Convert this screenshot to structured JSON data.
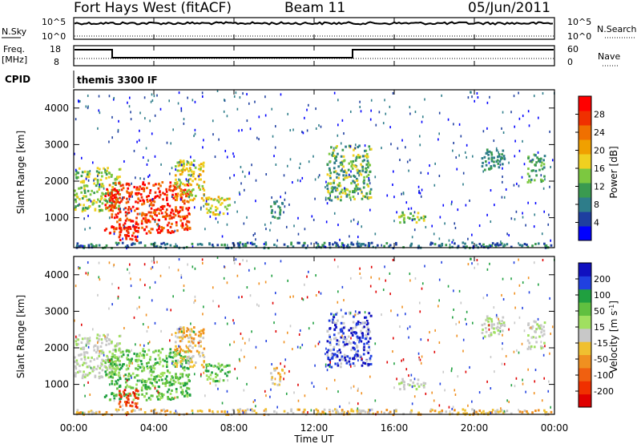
{
  "header": {
    "radar": "Fort Hays West (fitACF)",
    "beam": "Beam 11",
    "date": "05/Jun/2011"
  },
  "summary": {
    "left_top_label": "N.Sky",
    "right_top_label": "N.Search",
    "left_mid_label_1": "Freq.",
    "left_mid_label_2": "[MHz]",
    "right_mid_label": "Nave",
    "cpid_label": "CPID",
    "cpid_text": "themis 3300 IF",
    "nsky_ticks": [
      "10^5",
      "10^0"
    ],
    "freq_ticks": [
      "18",
      "8"
    ],
    "nave_ticks": [
      "60",
      "0"
    ]
  },
  "chart_data": [
    {
      "type": "heatmap",
      "title": "",
      "xlabel": "Time UT",
      "ylabel": "Slant Range [km]",
      "x_tick_labels": [
        "00:00",
        "04:00",
        "08:00",
        "12:00",
        "16:00",
        "20:00",
        "00:00"
      ],
      "y_tick_labels": [
        "1000",
        "2000",
        "3000",
        "4000"
      ],
      "ylim": [
        180,
        4500
      ],
      "colorbar": {
        "label": "Power [dB]",
        "ticks": [
          "4",
          "8",
          "12",
          "16",
          "20",
          "24",
          "28"
        ],
        "colors": [
          "#0000ff",
          "#1e3fa0",
          "#2e7d8a",
          "#3a9a50",
          "#7cc840",
          "#f0d020",
          "#f0a000",
          "#f07000",
          "#f03000",
          "#ff0000"
        ]
      }
    },
    {
      "type": "heatmap",
      "title": "",
      "xlabel": "Time UT",
      "ylabel": "Slant Range [km]",
      "x_tick_labels": [
        "00:00",
        "04:00",
        "08:00",
        "12:00",
        "16:00",
        "20:00",
        "00:00"
      ],
      "y_tick_labels": [
        "1000",
        "2000",
        "3000",
        "4000"
      ],
      "ylim": [
        180,
        4500
      ],
      "colorbar": {
        "label": "Velocity [m s^-1]",
        "ticks": [
          "200",
          "100",
          "50",
          "15",
          "-15",
          "-50",
          "-100",
          "-200"
        ],
        "colors": [
          "#1010c0",
          "#2040e0",
          "#20a040",
          "#60c040",
          "#a0e060",
          "#c8c8c8",
          "#f0c030",
          "#f09020",
          "#f06010",
          "#f03000",
          "#e00000"
        ]
      }
    }
  ]
}
